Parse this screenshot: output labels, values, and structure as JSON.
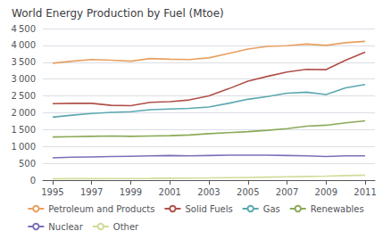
{
  "chart_data": {
    "type": "line",
    "title": "World Energy Production by Fuel (Mtoe)",
    "x": [
      1995,
      1996,
      1997,
      1998,
      1999,
      2000,
      2001,
      2002,
      2003,
      2004,
      2005,
      2006,
      2007,
      2008,
      2009,
      2010,
      2011
    ],
    "series": [
      {
        "name": "Petroleum and Products",
        "color": "#e8a060",
        "values": [
          3470,
          3530,
          3580,
          3560,
          3530,
          3610,
          3590,
          3580,
          3630,
          3760,
          3890,
          3970,
          3990,
          4040,
          4000,
          4080,
          4120
        ]
      },
      {
        "name": "Solid Fuels",
        "color": "#b05048",
        "values": [
          2270,
          2280,
          2280,
          2220,
          2210,
          2310,
          2330,
          2380,
          2500,
          2710,
          2940,
          3080,
          3210,
          3290,
          3280,
          3560,
          3800
        ]
      },
      {
        "name": "Gas",
        "color": "#5ba8b0",
        "values": [
          1870,
          1930,
          1980,
          2010,
          2030,
          2090,
          2110,
          2130,
          2170,
          2280,
          2400,
          2480,
          2580,
          2610,
          2540,
          2740,
          2840
        ]
      },
      {
        "name": "Renewables",
        "color": "#8aaa58",
        "values": [
          1280,
          1290,
          1300,
          1310,
          1300,
          1310,
          1320,
          1340,
          1380,
          1410,
          1440,
          1480,
          1530,
          1600,
          1630,
          1700,
          1760
        ]
      },
      {
        "name": "Nuclear",
        "color": "#7b70b8",
        "values": [
          660,
          680,
          690,
          700,
          710,
          720,
          730,
          720,
          730,
          740,
          740,
          740,
          730,
          720,
          700,
          720,
          720
        ]
      },
      {
        "name": "Other",
        "color": "#d0dc98",
        "values": [
          40,
          42,
          44,
          46,
          48,
          50,
          55,
          60,
          65,
          72,
          80,
          90,
          100,
          110,
          120,
          135,
          150
        ]
      }
    ],
    "xlim": [
      1994.5,
      2011.5
    ],
    "xticks": [
      1995,
      1997,
      1999,
      2001,
      2003,
      2005,
      2007,
      2009,
      2011
    ],
    "ylim": [
      0,
      4500
    ],
    "yticks": [
      0,
      500,
      {
        "value": 1000,
        "label": "1 000"
      },
      {
        "value": 1500,
        "label": "1 500"
      },
      {
        "value": 2000,
        "label": "2 000"
      },
      {
        "value": 2500,
        "label": "2 500"
      },
      {
        "value": 3000,
        "label": "3 000"
      },
      {
        "value": 3500,
        "label": "3 500"
      },
      {
        "value": 4000,
        "label": "4 000"
      },
      {
        "value": 4500,
        "label": "4 500"
      }
    ],
    "grid": true,
    "legend": "bottom"
  }
}
